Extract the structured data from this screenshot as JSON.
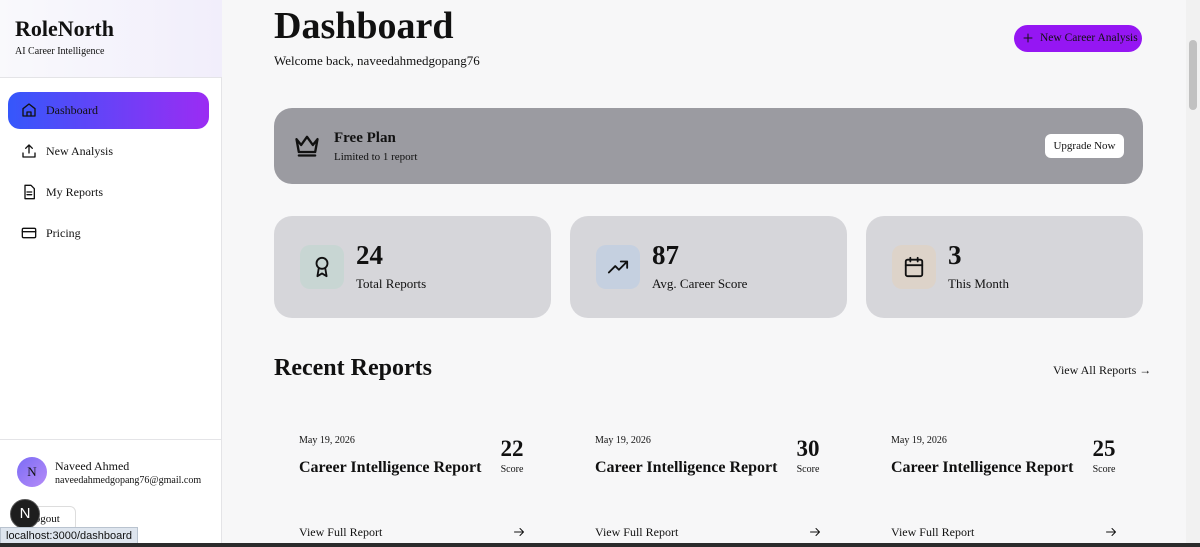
{
  "sidebar": {
    "brand": "RoleNorth",
    "tagline": "AI Career Intelligence",
    "nav": [
      "Dashboard",
      "New Analysis",
      "My Reports",
      "Pricing"
    ],
    "user": {
      "initial": "N",
      "name": "Naveed Ahmed",
      "email": "naveedahmedgopang76@gmail.com"
    },
    "logout": "Logout",
    "dev_badge": "N"
  },
  "header": {
    "title": "Dashboard",
    "welcome": "Welcome back, naveedahmedgopang76",
    "action": "New Career Analysis"
  },
  "plan": {
    "title": "Free Plan",
    "subtitle": "Limited to 1 report",
    "button": "Upgrade Now"
  },
  "stats": [
    {
      "value": 24,
      "label": "Total Reports"
    },
    {
      "value": 87,
      "label": "Avg. Career Score"
    },
    {
      "value": 3,
      "label": "This Month"
    }
  ],
  "recent": {
    "title": "Recent Reports",
    "link": "View All Reports →",
    "reports": [
      {
        "date": "May 19, 2026",
        "title": "Career Intelligence Report",
        "score": 22,
        "score_label": "Score",
        "link": "View Full Report"
      },
      {
        "date": "May 19, 2026",
        "title": "Career Intelligence Report",
        "score": 30,
        "score_label": "Score",
        "link": "View Full Report"
      },
      {
        "date": "May 19, 2026",
        "title": "Career Intelligence Report",
        "score": 25,
        "score_label": "Score",
        "link": "View Full Report"
      }
    ]
  },
  "status_bar": "localhost:3000/dashboard"
}
